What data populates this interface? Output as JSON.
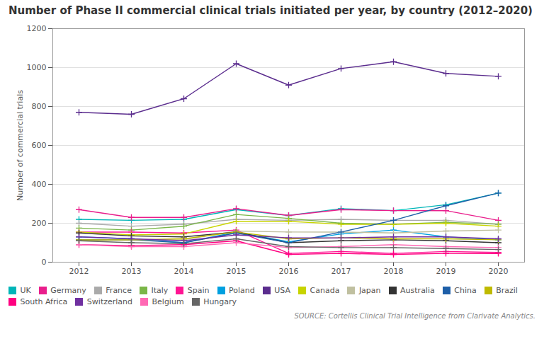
{
  "chart_data": {
    "type": "line",
    "title": "Number of Phase II commercial clinical trials initiated per year, by country (2012–2020)",
    "ylabel": "Number of commercial trials",
    "source": "SOURCE: Cortellis Clinical Trial Intelligence from Clarivate Analytics.",
    "x": [
      2012,
      2013,
      2014,
      2015,
      2016,
      2017,
      2018,
      2019,
      2020
    ],
    "xlim": [
      2011.5,
      2020.5
    ],
    "xticks": [
      2012,
      2013,
      2014,
      2015,
      2016,
      2017,
      2018,
      2019,
      2020
    ],
    "ylim": [
      0,
      1200
    ],
    "yticks": [
      0,
      200,
      400,
      600,
      800,
      1000,
      1200
    ],
    "grid": true,
    "legend": "bottom",
    "marker": "plus",
    "series": [
      {
        "name": "UK",
        "color": "#00b5b8",
        "values": [
          220,
          215,
          220,
          270,
          240,
          275,
          265,
          295,
          355
        ]
      },
      {
        "name": "Germany",
        "color": "#e91e8c",
        "values": [
          270,
          230,
          230,
          275,
          240,
          270,
          265,
          265,
          215
        ]
      },
      {
        "name": "France",
        "color": "#aaaaaa",
        "values": [
          200,
          185,
          195,
          220,
          215,
          220,
          215,
          215,
          195
        ]
      },
      {
        "name": "Italy",
        "color": "#7ab648",
        "values": [
          175,
          165,
          185,
          245,
          225,
          200,
          195,
          205,
          195
        ]
      },
      {
        "name": "Spain",
        "color": "#ff1493",
        "values": [
          155,
          155,
          150,
          165,
          45,
          55,
          45,
          55,
          50
        ]
      },
      {
        "name": "Poland",
        "color": "#00a0e0",
        "values": [
          130,
          120,
          100,
          155,
          105,
          145,
          165,
          130,
          115
        ]
      },
      {
        "name": "USA",
        "color": "#5b2d8e",
        "values": [
          770,
          760,
          840,
          1020,
          910,
          995,
          1030,
          970,
          955
        ]
      },
      {
        "name": "Canada",
        "color": "#c8d400",
        "values": [
          155,
          140,
          145,
          210,
          210,
          195,
          195,
          200,
          185
        ]
      },
      {
        "name": "Japan",
        "color": "#c0c0a0",
        "values": [
          110,
          115,
          115,
          160,
          155,
          155,
          150,
          160,
          165
        ]
      },
      {
        "name": "Australia",
        "color": "#333333",
        "values": [
          150,
          135,
          130,
          155,
          100,
          110,
          115,
          110,
          100
        ]
      },
      {
        "name": "China",
        "color": "#1e5fa8",
        "values": [
          115,
          115,
          100,
          150,
          100,
          155,
          215,
          290,
          355
        ]
      },
      {
        "name": "Brazil",
        "color": "#bfba00",
        "values": [
          115,
          115,
          120,
          155,
          120,
          125,
          120,
          120,
          115
        ]
      },
      {
        "name": "South Africa",
        "color": "#ff0080",
        "values": [
          90,
          85,
          90,
          110,
          40,
          45,
          40,
          45,
          45
        ]
      },
      {
        "name": "Switzerland",
        "color": "#7030a0",
        "values": [
          130,
          120,
          110,
          140,
          125,
          125,
          130,
          130,
          120
        ]
      },
      {
        "name": "Belgium",
        "color": "#ff69b4",
        "values": [
          90,
          80,
          80,
          100,
          75,
          80,
          90,
          80,
          75
        ]
      },
      {
        "name": "Hungary",
        "color": "#666666",
        "values": [
          110,
          100,
          95,
          120,
          80,
          75,
          75,
          70,
          65
        ]
      }
    ]
  }
}
